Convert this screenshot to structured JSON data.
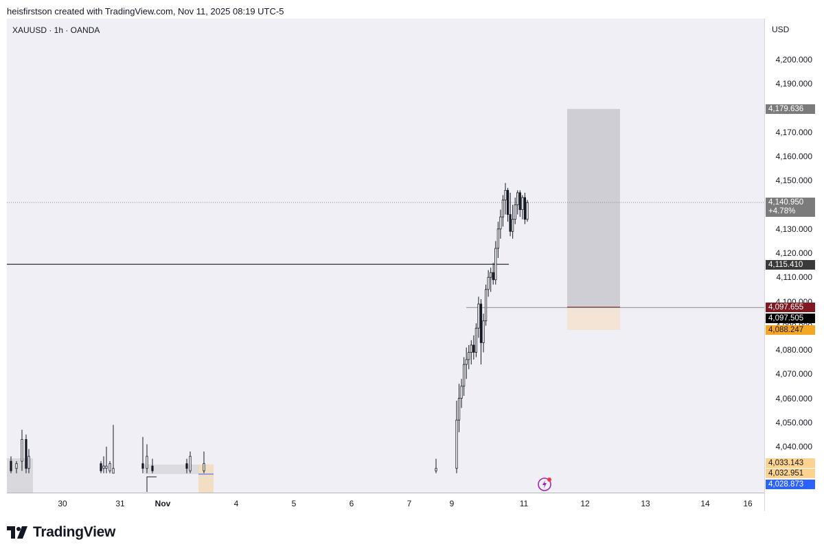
{
  "caption": "heisfirstson created with TradingView.com, Nov 11, 2025 08:19 UTC-5",
  "symbol_line": "XAUUSD · 1h · OANDA",
  "currency": "USD",
  "brand": "TradingView",
  "colors": {
    "chart_bg": "#f0eff5",
    "candle": "#131722",
    "target_zone": "#cfced4",
    "stop_zone": "#f3e4d6",
    "last_price_label": "#7b7b7b",
    "level_label_dark": "#3a3a3a",
    "entry_label": "#801922",
    "bid_label": "#000000",
    "stop_label": "#f5a623",
    "low_label_orange": "#fbd38f",
    "low_label_blue": "#2962ff"
  },
  "icons": [
    "tradingview-logo-icon",
    "flash-alert-icon"
  ],
  "chart_data": {
    "type": "candlestick",
    "title": "XAUUSD · 1h · OANDA",
    "ylim": [
      4028,
      4210
    ],
    "y_ticks": [
      "4,040.000",
      "4,050.000",
      "4,060.000",
      "4,070.000",
      "4,080.000",
      "4,090.000",
      "4,100.000",
      "4,110.000",
      "4,120.000",
      "4,130.000",
      "4,140.000",
      "4,150.000",
      "4,160.000",
      "4,170.000",
      "4,180.000",
      "4,190.000",
      "4,200.000"
    ],
    "x_labels": [
      "30",
      "31",
      "Nov",
      "4",
      "5",
      "6",
      "7",
      "9",
      "11",
      "12",
      "13",
      "14",
      "16"
    ],
    "price_labels": [
      {
        "value": "4,179.636",
        "price": 4179.636,
        "color": "#7b7b7b"
      },
      {
        "value": "4,140.950",
        "price": 4140.95,
        "sub": "+4.78%",
        "color": "#7b7b7b"
      },
      {
        "value": "4,115.410",
        "price": 4115.41,
        "color": "#3a3a3a"
      },
      {
        "value": "4,097.655",
        "price": 4097.655,
        "color": "#801922"
      },
      {
        "value": "4,097.505",
        "price": 4097.505,
        "color": "#000000"
      },
      {
        "value": "4,088.247",
        "price": 4088.247,
        "color": "#f5a623"
      },
      {
        "value": "4,033.143",
        "price": 4033.143,
        "color": "#fbd38f"
      },
      {
        "value": "4,032.951",
        "price": 4032.951,
        "color": "#fbd38f"
      },
      {
        "value": "4,028.873",
        "price": 4028.873,
        "color": "#2962ff"
      }
    ],
    "horizontal_lines": [
      {
        "name": "resistance-line",
        "price": 4115.41
      },
      {
        "name": "entry-line",
        "price": 4097.505
      },
      {
        "name": "last-price-dotted",
        "price": 4140.95
      }
    ],
    "position_tool": {
      "target": 4179.636,
      "entry": 4097.655,
      "stop": 4088.247
    },
    "candles": [
      {
        "o": 4034,
        "h": 4036,
        "l": 4029,
        "c": 4030
      },
      {
        "o": 4031,
        "h": 4034,
        "l": 4029,
        "c": 4033
      },
      {
        "o": 4034,
        "h": 4047,
        "l": 4030,
        "c": 4043
      },
      {
        "o": 4043,
        "h": 4045,
        "l": 4029,
        "c": 4031
      },
      {
        "o": 4031,
        "h": 4039,
        "l": 4029,
        "c": 4036
      },
      {
        "o": 4033,
        "h": 4034,
        "l": 4029,
        "c": 4030
      },
      {
        "o": 4031,
        "h": 4036,
        "l": 4029,
        "c": 4032
      },
      {
        "o": 4031,
        "h": 4040,
        "l": 4029,
        "c": 4032
      },
      {
        "o": 4030,
        "h": 4034,
        "l": 4029,
        "c": 4033
      },
      {
        "o": 4029,
        "h": 4049,
        "l": 4029,
        "c": 4031
      },
      {
        "o": 4031,
        "h": 4059,
        "l": 4029,
        "c": 4051
      },
      {
        "o": 4051,
        "h": 4066,
        "l": 4046,
        "c": 4060
      },
      {
        "o": 4060,
        "h": 4068,
        "l": 4056,
        "c": 4065
      },
      {
        "o": 4065,
        "h": 4077,
        "l": 4061,
        "c": 4074
      },
      {
        "o": 4074,
        "h": 4081,
        "l": 4068,
        "c": 4076
      },
      {
        "o": 4076,
        "h": 4082,
        "l": 4072,
        "c": 4079
      },
      {
        "o": 4079,
        "h": 4084,
        "l": 4074,
        "c": 4082
      },
      {
        "o": 4082,
        "h": 4086,
        "l": 4076,
        "c": 4079
      },
      {
        "o": 4079,
        "h": 4091,
        "l": 4077,
        "c": 4089
      },
      {
        "o": 4089,
        "h": 4102,
        "l": 4085,
        "c": 4099
      },
      {
        "o": 4099,
        "h": 4101,
        "l": 4074,
        "c": 4083
      },
      {
        "o": 4083,
        "h": 4095,
        "l": 4079,
        "c": 4092
      },
      {
        "o": 4092,
        "h": 4107,
        "l": 4090,
        "c": 4105
      },
      {
        "o": 4105,
        "h": 4113,
        "l": 4102,
        "c": 4110
      },
      {
        "o": 4110,
        "h": 4114,
        "l": 4104,
        "c": 4112
      },
      {
        "o": 4112,
        "h": 4116,
        "l": 4107,
        "c": 4109
      },
      {
        "o": 4109,
        "h": 4125,
        "l": 4107,
        "c": 4122
      },
      {
        "o": 4122,
        "h": 4133,
        "l": 4118,
        "c": 4130
      },
      {
        "o": 4130,
        "h": 4138,
        "l": 4126,
        "c": 4135
      },
      {
        "o": 4135,
        "h": 4144,
        "l": 4131,
        "c": 4142
      },
      {
        "o": 4142,
        "h": 4149,
        "l": 4136,
        "c": 4146
      },
      {
        "o": 4146,
        "h": 4147,
        "l": 4133,
        "c": 4136
      },
      {
        "o": 4136,
        "h": 4145,
        "l": 4127,
        "c": 4129
      },
      {
        "o": 4129,
        "h": 4140,
        "l": 4126,
        "c": 4134
      },
      {
        "o": 4134,
        "h": 4143,
        "l": 4132,
        "c": 4140
      },
      {
        "o": 4140,
        "h": 4146,
        "l": 4136,
        "c": 4145
      },
      {
        "o": 4145,
        "h": 4146,
        "l": 4135,
        "c": 4138
      },
      {
        "o": 4138,
        "h": 4144,
        "l": 4134,
        "c": 4143
      },
      {
        "o": 4143,
        "h": 4145,
        "l": 4132,
        "c": 4134
      },
      {
        "o": 4134,
        "h": 4142,
        "l": 4133,
        "c": 4140.95
      }
    ]
  }
}
